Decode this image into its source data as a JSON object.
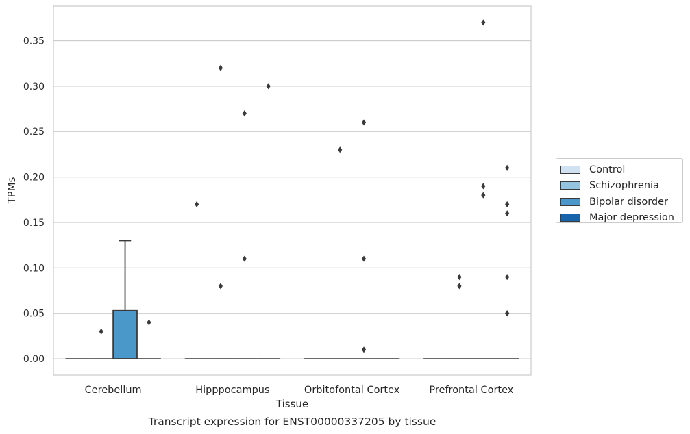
{
  "chart_data": {
    "type": "box",
    "title": "Transcript expression for ENST00000337205 by tissue",
    "xlabel": "Tissue",
    "ylabel": "TPMs",
    "categories": [
      "Cerebellum",
      "Hipppocampus",
      "Orbitofontal Cortex",
      "Prefrontal Cortex"
    ],
    "ylim": [
      -0.018,
      0.388
    ],
    "yticks": [
      0.0,
      0.05,
      0.1,
      0.15,
      0.2,
      0.25,
      0.3,
      0.35
    ],
    "ytick_labels": [
      "0.00",
      "0.05",
      "0.10",
      "0.15",
      "0.20",
      "0.25",
      "0.30",
      "0.35"
    ],
    "grid": true,
    "legend_position": "right",
    "series": [
      {
        "name": "Control",
        "color": "#d0e1f2",
        "boxes": [
          {
            "q1": 0,
            "median": 0,
            "q3": 0,
            "whisker_low": 0,
            "whisker_high": 0,
            "outliers": []
          },
          {
            "q1": 0,
            "median": 0,
            "q3": 0,
            "whisker_low": 0,
            "whisker_high": 0,
            "outliers": [
              0.17
            ]
          },
          {
            "q1": 0,
            "median": 0,
            "q3": 0,
            "whisker_low": 0,
            "whisker_high": 0,
            "outliers": []
          },
          {
            "q1": 0,
            "median": 0,
            "q3": 0,
            "whisker_low": 0,
            "whisker_high": 0,
            "outliers": []
          }
        ]
      },
      {
        "name": "Schizophrenia",
        "color": "#94c4df",
        "boxes": [
          {
            "q1": 0,
            "median": 0,
            "q3": 0,
            "whisker_low": 0,
            "whisker_high": 0,
            "outliers": [
              0.03
            ]
          },
          {
            "q1": 0,
            "median": 0,
            "q3": 0,
            "whisker_low": 0,
            "whisker_high": 0,
            "outliers": [
              0.08,
              0.32
            ]
          },
          {
            "q1": 0,
            "median": 0,
            "q3": 0,
            "whisker_low": 0,
            "whisker_high": 0,
            "outliers": [
              0.23
            ]
          },
          {
            "q1": 0,
            "median": 0,
            "q3": 0,
            "whisker_low": 0,
            "whisker_high": 0,
            "outliers": [
              0.08,
              0.09
            ]
          }
        ]
      },
      {
        "name": "Bipolar disorder",
        "color": "#4a98c9",
        "boxes": [
          {
            "q1": 0,
            "median": 0,
            "q3": 0.053,
            "whisker_low": 0,
            "whisker_high": 0.13,
            "outliers": []
          },
          {
            "q1": 0,
            "median": 0,
            "q3": 0,
            "whisker_low": 0,
            "whisker_high": 0,
            "outliers": [
              0.11,
              0.27
            ]
          },
          {
            "q1": 0,
            "median": 0,
            "q3": 0,
            "whisker_low": 0,
            "whisker_high": 0,
            "outliers": [
              0.01,
              0.11,
              0.26
            ]
          },
          {
            "q1": 0,
            "median": 0,
            "q3": 0,
            "whisker_low": 0,
            "whisker_high": 0,
            "outliers": [
              0.19,
              0.18,
              0.37
            ]
          }
        ]
      },
      {
        "name": "Major depression",
        "color": "#1764ab",
        "boxes": [
          {
            "q1": 0,
            "median": 0,
            "q3": 0,
            "whisker_low": 0,
            "whisker_high": 0,
            "outliers": [
              0.04
            ]
          },
          {
            "q1": 0,
            "median": 0,
            "q3": 0,
            "whisker_low": 0,
            "whisker_high": 0,
            "outliers": [
              0.3
            ]
          },
          {
            "q1": 0,
            "median": 0,
            "q3": 0,
            "whisker_low": 0,
            "whisker_high": 0,
            "outliers": []
          },
          {
            "q1": 0,
            "median": 0,
            "q3": 0,
            "whisker_low": 0,
            "whisker_high": 0,
            "outliers": [
              0.05,
              0.09,
              0.17,
              0.05,
              0.16,
              0.21
            ]
          }
        ]
      }
    ]
  }
}
